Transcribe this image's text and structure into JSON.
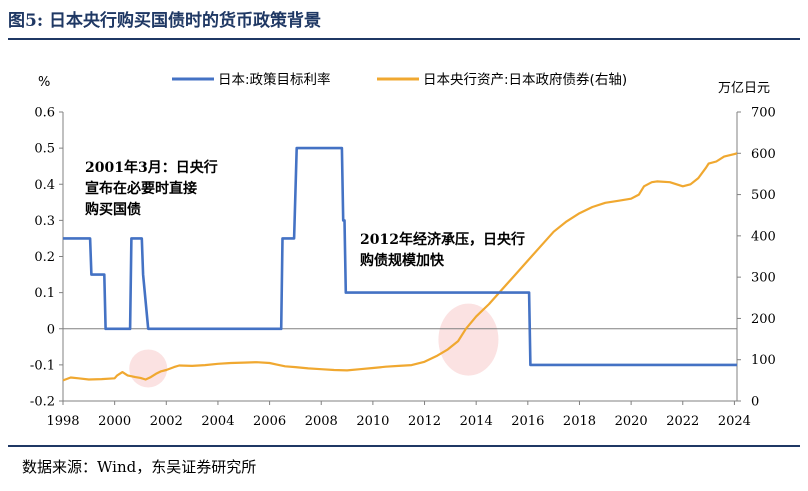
{
  "title": "图5:  日本央行购买国债时的货币政策背景",
  "source": "数据来源：Wind，东吴证券研究所",
  "chart_data": {
    "type": "line",
    "left_unit": "%",
    "right_unit": "万亿日元",
    "x_ticks": [
      "1998",
      "2000",
      "2002",
      "2004",
      "2006",
      "2008",
      "2010",
      "2012",
      "2014",
      "2016",
      "2018",
      "2020",
      "2022",
      "2024"
    ],
    "y_left_ticks": [
      "-0.2",
      "-0.1",
      "0",
      "0.1",
      "0.2",
      "0.3",
      "0.4",
      "0.5",
      "0.6"
    ],
    "y_right_ticks": [
      "0",
      "100",
      "200",
      "300",
      "400",
      "500",
      "600",
      "700"
    ],
    "xlim": [
      1998,
      2024.1
    ],
    "ylim_left": [
      -0.2,
      0.6
    ],
    "ylim_right": [
      0,
      700
    ],
    "grid": false,
    "legend_position": "top-center",
    "series": [
      {
        "name": "日本:政策目标利率",
        "axis": "left",
        "color": "#4472c4",
        "x": [
          1998.0,
          1999.05,
          1999.1,
          1999.6,
          1999.65,
          1999.95,
          2000.6,
          2000.65,
          2001.05,
          2001.1,
          2001.3,
          2001.35,
          2006.45,
          2006.5,
          2006.95,
          2007.05,
          2008.8,
          2008.85,
          2008.9,
          2008.95,
          2016.05,
          2016.1,
          2024.1
        ],
        "y": [
          0.25,
          0.25,
          0.15,
          0.15,
          0.0,
          0.0,
          0.0,
          0.25,
          0.25,
          0.15,
          0.0,
          0.0,
          0.0,
          0.25,
          0.25,
          0.5,
          0.5,
          0.3,
          0.3,
          0.1,
          0.1,
          -0.1,
          -0.1
        ]
      },
      {
        "name": "日本央行资产:日本政府债券(右轴)",
        "axis": "right",
        "color": "#f0a830",
        "x": [
          1998.0,
          1998.3,
          1998.6,
          1999.0,
          1999.5,
          2000.0,
          2000.1,
          2000.3,
          2000.5,
          2000.8,
          2001.0,
          2001.2,
          2001.4,
          2001.6,
          2001.8,
          2002.0,
          2002.3,
          2002.5,
          2003.0,
          2003.5,
          2004.0,
          2004.5,
          2005.0,
          2005.5,
          2006.0,
          2006.3,
          2006.6,
          2007.0,
          2007.5,
          2008.0,
          2008.5,
          2009.0,
          2009.5,
          2010.0,
          2010.5,
          2011.0,
          2011.5,
          2012.0,
          2012.5,
          2012.9,
          2013.3,
          2013.6,
          2014.0,
          2014.5,
          2015.0,
          2015.5,
          2016.0,
          2016.5,
          2017.0,
          2017.5,
          2018.0,
          2018.5,
          2019.0,
          2019.5,
          2020.0,
          2020.3,
          2020.5,
          2020.8,
          2021.0,
          2021.5,
          2022.0,
          2022.3,
          2022.6,
          2022.9,
          2023.0,
          2023.3,
          2023.6,
          2024.0,
          2024.1
        ],
        "y": [
          50,
          57,
          55,
          52,
          53,
          55,
          62,
          70,
          62,
          58,
          56,
          52,
          58,
          66,
          72,
          75,
          82,
          86,
          85,
          87,
          90,
          92,
          93,
          94,
          92,
          88,
          84,
          82,
          79,
          77,
          75,
          74,
          77,
          80,
          83,
          85,
          87,
          95,
          110,
          125,
          145,
          175,
          205,
          235,
          270,
          305,
          340,
          375,
          410,
          435,
          455,
          470,
          480,
          485,
          490,
          500,
          520,
          530,
          532,
          530,
          520,
          525,
          540,
          565,
          575,
          580,
          592,
          598,
          600
        ]
      }
    ],
    "annotations": [
      {
        "lines": [
          "2001年3月：日央行",
          "宣布在必要时直接",
          "购买国债"
        ]
      },
      {
        "lines": [
          "2012年经济承压，日央行",
          "购债规模加快"
        ]
      }
    ],
    "highlights": [
      {
        "x": 2001.3,
        "y_left": -0.11
      },
      {
        "x": 2013.7,
        "y_left": -0.03
      }
    ]
  }
}
